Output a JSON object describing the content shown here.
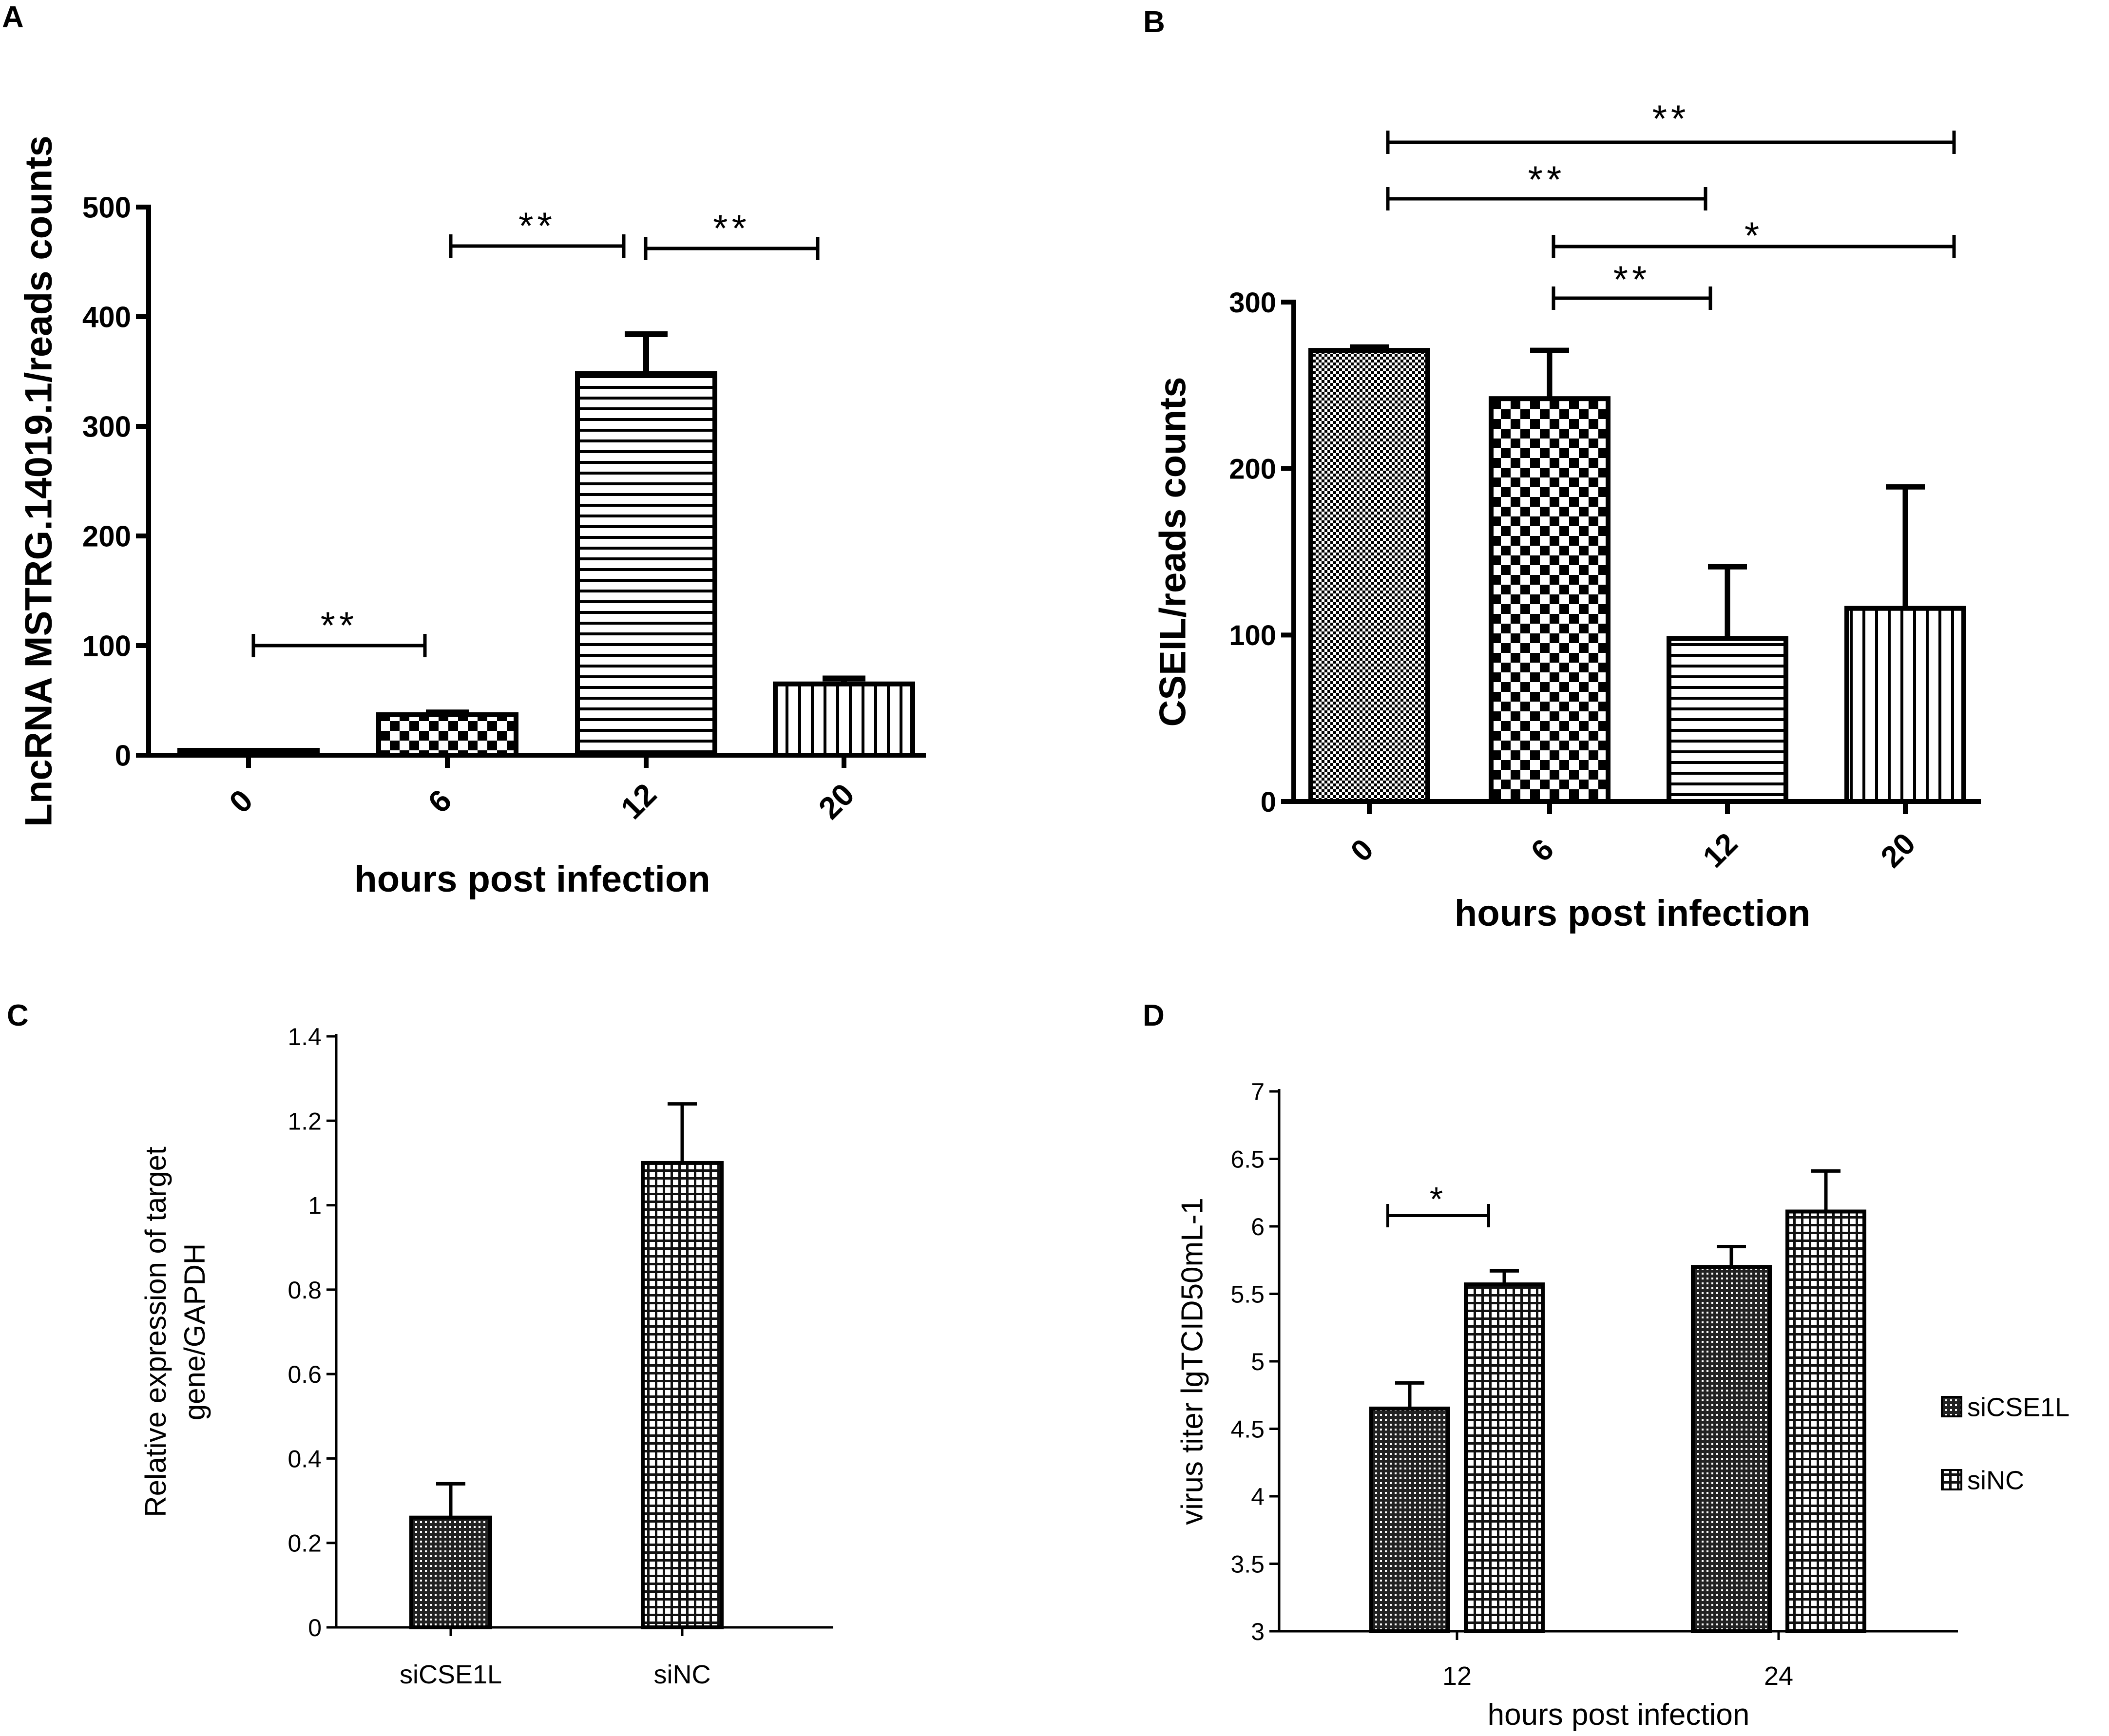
{
  "figure": {
    "panel_letters": [
      "A",
      "B",
      "C",
      "D"
    ]
  },
  "chart_data": [
    {
      "panel": "A",
      "type": "bar",
      "title": "",
      "categories": [
        "0",
        "6",
        "12",
        "20"
      ],
      "values": [
        2,
        37,
        348,
        65
      ],
      "errors": [
        1,
        2,
        36,
        5
      ],
      "xlabel": "hours post infection",
      "ylabel": "LncRNA MSTRG.14019.1/reads counts",
      "ylim": [
        0,
        500
      ],
      "yticks": [
        "0",
        "100",
        "200",
        "300",
        "400",
        "500"
      ],
      "patterns": [
        "fine-check",
        "checker",
        "horizontal",
        "vertical"
      ],
      "significance": [
        {
          "from": 0,
          "to": 1,
          "label": "**"
        },
        {
          "from": 1,
          "to": 2,
          "label": "**"
        },
        {
          "from": 2,
          "to": 3,
          "label": "**"
        }
      ],
      "grid": false
    },
    {
      "panel": "B",
      "type": "bar",
      "title": "",
      "categories": [
        "0",
        "6",
        "12",
        "20"
      ],
      "values": [
        271,
        242,
        98,
        116
      ],
      "errors": [
        2,
        29,
        43,
        73
      ],
      "xlabel": "hours post infection",
      "ylabel": "CSEIL/reads counts",
      "ylim": [
        0,
        300
      ],
      "yticks": [
        "0",
        "100",
        "200",
        "300"
      ],
      "patterns": [
        "fine-check",
        "checker",
        "horizontal",
        "vertical"
      ],
      "significance": [
        {
          "from": 0,
          "to": 3,
          "label": "**"
        },
        {
          "from": 0,
          "to": 2,
          "label": "**"
        },
        {
          "from": 1,
          "to": 3,
          "label": "*"
        },
        {
          "from": 1,
          "to": 2,
          "label": "**"
        }
      ],
      "grid": false
    },
    {
      "panel": "C",
      "type": "bar",
      "title": "",
      "categories": [
        "siCSE1L",
        "siNC"
      ],
      "values": [
        0.26,
        1.1
      ],
      "errors": [
        0.08,
        0.14
      ],
      "xlabel": "",
      "ylabel_lines": [
        "Relative  expression of target",
        "gene/GAPDH"
      ],
      "ylim": [
        0,
        1.4
      ],
      "yticks": [
        "0",
        "0.2",
        "0.4",
        "0.6",
        "0.8",
        "1",
        "1.2",
        "1.4"
      ],
      "patterns": [
        "dense-dots",
        "grid"
      ],
      "grid": false
    },
    {
      "panel": "D",
      "type": "bar",
      "title": "",
      "categories": [
        "12",
        "24"
      ],
      "series": [
        {
          "name": "siCSE1L",
          "values": [
            4.65,
            5.7
          ],
          "errors": [
            0.19,
            0.15
          ],
          "pattern": "dense-dots"
        },
        {
          "name": "siNC",
          "values": [
            5.57,
            6.11
          ],
          "errors": [
            0.1,
            0.3
          ],
          "pattern": "grid"
        }
      ],
      "xlabel": "hours post infection",
      "ylabel": "virus titer lgTCID50mL-1",
      "ylim": [
        3,
        7
      ],
      "yticks": [
        "3",
        "3.5",
        "4",
        "4.5",
        "5",
        "5.5",
        "6",
        "6.5",
        "7"
      ],
      "significance": [
        {
          "category": 0,
          "label": "*"
        }
      ],
      "legend": "right",
      "grid": false
    }
  ]
}
